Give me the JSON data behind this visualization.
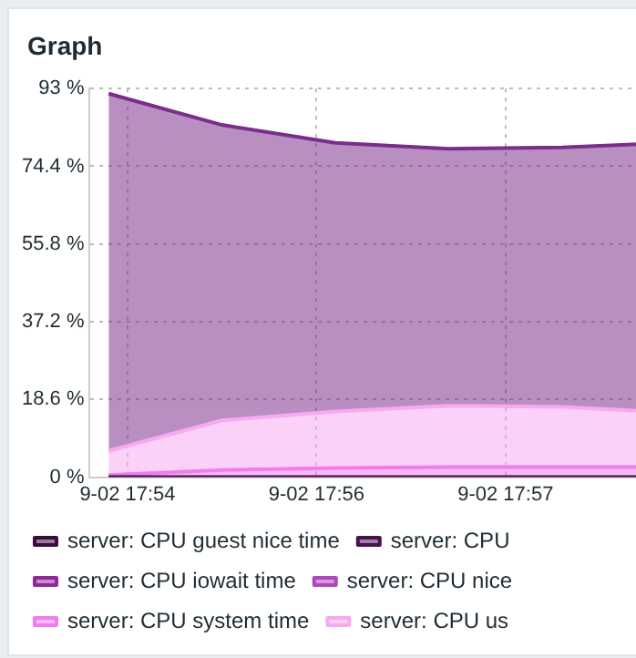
{
  "chart_data": {
    "type": "area",
    "title": "Graph",
    "stacked": true,
    "categories": [
      null,
      null,
      "9-02 17:54",
      null,
      null,
      null,
      null,
      null,
      null,
      null,
      null,
      null,
      "9-02 17:56",
      null,
      null,
      null,
      null,
      null,
      null,
      null,
      null,
      null,
      "9-02 17:57",
      null,
      null,
      null,
      null,
      null,
      null,
      null
    ],
    "ylim": [
      0,
      93
    ],
    "yticks": [
      {
        "value": 0,
        "label": "0 %"
      },
      {
        "value": 18.6,
        "label": "18.6 %"
      },
      {
        "value": 37.2,
        "label": "37.2 %"
      },
      {
        "value": 55.8,
        "label": "55.8 %"
      },
      {
        "value": 74.4,
        "label": "74.4 %"
      },
      {
        "value": 93,
        "label": "93 %"
      }
    ],
    "grid": true,
    "legend": "bottom",
    "marker": "none",
    "line_style": "solid",
    "series": [
      {
        "name": "server: CPU guest nice time",
        "type": "line",
        "color": "#3a0a3e",
        "values": [
          null,
          0,
          null,
          null,
          null,
          null,
          null,
          0,
          null,
          null,
          null,
          null,
          null,
          0,
          null,
          null,
          null,
          null,
          null,
          0,
          null,
          null,
          null,
          null,
          null,
          0,
          null,
          null,
          null,
          0
        ]
      },
      {
        "name": "server: CPU",
        "color": "#4a1252",
        "values": [
          null,
          null,
          null,
          null,
          null,
          null,
          null,
          null,
          null,
          null,
          null,
          null,
          null,
          null,
          null,
          null,
          null,
          null,
          null,
          null,
          null,
          null,
          null,
          null,
          null,
          null,
          null,
          null,
          null,
          null
        ]
      },
      {
        "name": "server: CPU iowait time",
        "color": "#8e2a98",
        "values": [
          null,
          null,
          null,
          null,
          null,
          null,
          null,
          null,
          null,
          null,
          null,
          null,
          null,
          null,
          null,
          null,
          null,
          null,
          null,
          null,
          null,
          null,
          null,
          null,
          null,
          null,
          null,
          null,
          null,
          null
        ]
      },
      {
        "name": "server: CPU nice",
        "color": "#b046bc",
        "values": [
          null,
          null,
          null,
          null,
          null,
          null,
          null,
          null,
          null,
          null,
          null,
          null,
          null,
          null,
          null,
          null,
          null,
          null,
          null,
          null,
          null,
          null,
          null,
          null,
          null,
          null,
          null,
          null,
          null,
          null
        ]
      },
      {
        "name": "server: CPU system time",
        "color": "#f07cf0",
        "values": [
          null,
          0.5,
          null,
          null,
          null,
          null,
          null,
          1.7,
          null,
          null,
          null,
          null,
          null,
          2.2,
          null,
          null,
          null,
          null,
          null,
          2.4,
          null,
          null,
          null,
          null,
          null,
          2.4,
          null,
          null,
          null,
          2.4
        ]
      },
      {
        "name": "server: CPU us",
        "color": "#f9a8f2",
        "values": [
          null,
          5.8,
          null,
          null,
          null,
          null,
          null,
          11.9,
          null,
          null,
          null,
          null,
          null,
          13.5,
          null,
          null,
          null,
          null,
          null,
          14.7,
          null,
          null,
          null,
          null,
          null,
          14.4,
          null,
          null,
          null,
          13.5
        ]
      },
      {
        "color": "#7b2d8b",
        "values": [
          null,
          85.5,
          null,
          null,
          null,
          null,
          null,
          70.7,
          null,
          null,
          null,
          null,
          null,
          64.3,
          null,
          null,
          null,
          null,
          null,
          61.5,
          null,
          null,
          null,
          null,
          null,
          62.1,
          null,
          null,
          null,
          63.8
        ]
      }
    ]
  }
}
